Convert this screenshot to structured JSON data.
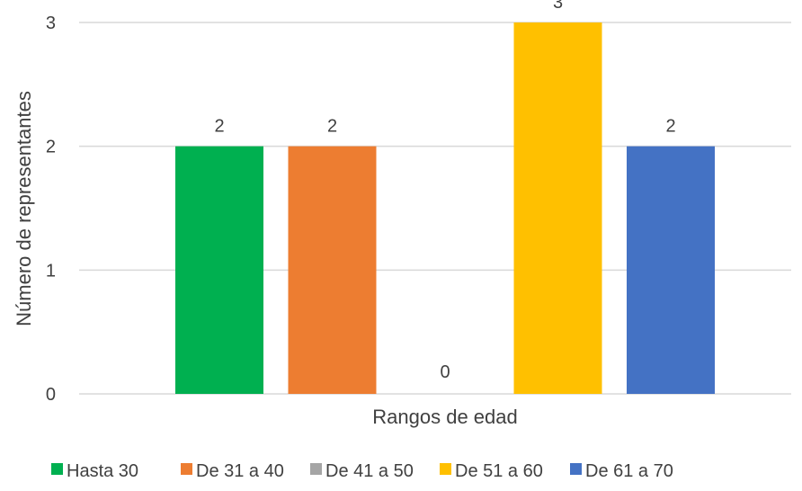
{
  "chart_data": {
    "type": "bar",
    "title": "",
    "xlabel": "Rangos de edad",
    "ylabel": "Número de representantes",
    "ylim": [
      0,
      3
    ],
    "yticks": [
      0,
      1,
      2,
      3
    ],
    "grid": true,
    "legend_position": "bottom",
    "series": [
      {
        "name": "Hasta 30",
        "values": [
          2
        ],
        "color": "#00B050"
      },
      {
        "name": "De 31 a 40",
        "values": [
          2
        ],
        "color": "#ED7D31"
      },
      {
        "name": "De 41 a 50",
        "values": [
          0
        ],
        "color": "#A5A5A5"
      },
      {
        "name": "De 51 a 60",
        "values": [
          3
        ],
        "color": "#FFC000"
      },
      {
        "name": "De 61 a 70",
        "values": [
          2
        ],
        "color": "#4472C4"
      }
    ],
    "data_labels": true
  }
}
